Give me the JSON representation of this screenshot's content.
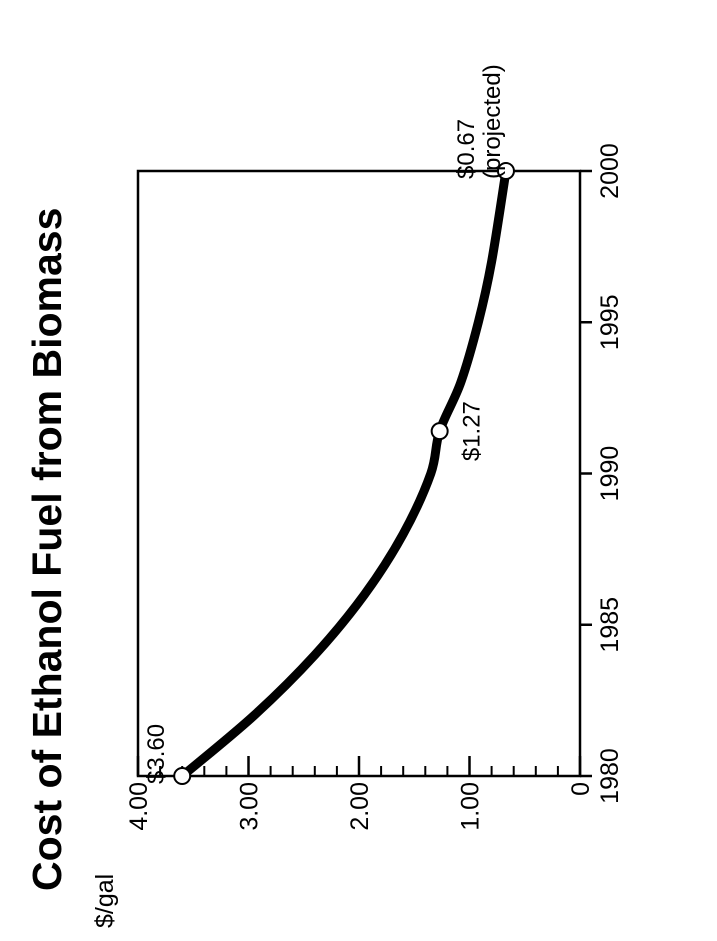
{
  "chart_data": {
    "type": "line",
    "title": "Cost of Ethanol Fuel from Biomass",
    "ylabel": "$/gal",
    "xlabel": "",
    "xlim": [
      1980,
      2000
    ],
    "ylim": [
      0,
      4
    ],
    "x_ticks": [
      1980,
      1985,
      1990,
      1995,
      2000
    ],
    "x_tick_labels": [
      "1980",
      "1985",
      "1990",
      "1995",
      "2000"
    ],
    "y_ticks": [
      0,
      1,
      2,
      3,
      4
    ],
    "y_tick_labels": [
      "0",
      "1.00",
      "2.00",
      "3.00",
      "4.00"
    ],
    "grid": false,
    "orientation": "rotated 90° counter-clockwise",
    "series": [
      {
        "x": [
          1980,
          1982,
          1984,
          1986,
          1988,
          1990,
          1991.4,
          1993,
          1995,
          1997,
          2000
        ],
        "values": [
          3.6,
          2.95,
          2.4,
          1.95,
          1.6,
          1.35,
          1.27,
          1.08,
          0.92,
          0.8,
          0.67
        ]
      }
    ],
    "markers": [
      {
        "x": 1980,
        "y": 3.6,
        "label": "$3.60"
      },
      {
        "x": 1991.4,
        "y": 1.27,
        "label": "$1.27"
      },
      {
        "x": 2000,
        "y": 0.67,
        "label": "$0.67",
        "label2": "(projected)"
      }
    ]
  }
}
